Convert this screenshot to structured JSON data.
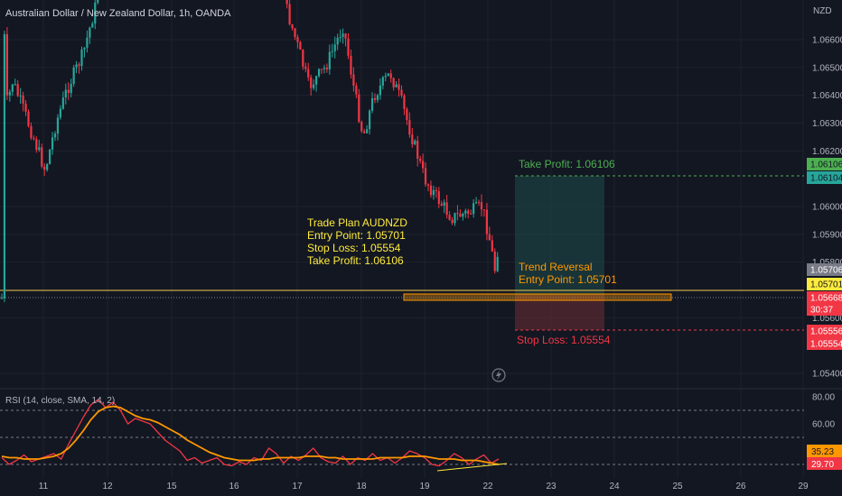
{
  "header": {
    "symbol_title": "Australian Dollar / New Zealand Dollar, 1h, OANDA",
    "currency": "NZD"
  },
  "colors": {
    "background": "#131722",
    "up": "#26a69a",
    "down": "#f23645",
    "grid": "#1e222d",
    "rsi_line": "#f23645",
    "rsi_sma": "#ff9800",
    "plan_text": "#ffeb3b",
    "entry_line": "#f2c94c",
    "take_profit": "#4caf50",
    "stop_loss": "#f23645",
    "orange_text": "#ff9800"
  },
  "plan": {
    "title": "Trade Plan AUDNZD",
    "entry": "Entry Point: 1.05701",
    "stop": "Stop Loss: 1.05554",
    "take": "Take Profit: 1.06106"
  },
  "position": {
    "take_profit_label": "Take Profit: 1.06106",
    "reversal_title": "Trend Reversal",
    "reversal_entry": "Entry Point: 1.05701",
    "stop_loss_label": "Stop Loss: 1.05554"
  },
  "rsi": {
    "legend": "RSI (14, close, SMA, 14, 2)",
    "value_tag": "35.23",
    "sma_tag": "29.70"
  },
  "price_tags": [
    {
      "text": "1.06106",
      "value": 1.06106,
      "bg": "#4caf50",
      "fg": "#131722"
    },
    {
      "text": "1.06104",
      "value": 1.06104,
      "bg": "#26a69a",
      "fg": "#131722"
    },
    {
      "text": "1.05706",
      "value": 1.05706,
      "bg": "#787b86",
      "fg": "#ffffff"
    },
    {
      "text": "1.05701",
      "value": 1.05701,
      "bg": "#ffeb3b",
      "fg": "#131722"
    },
    {
      "text": "1.05668",
      "value": 1.05668,
      "bg": "#f23645",
      "fg": "#ffffff"
    },
    {
      "text": "30:37",
      "value": 1.0565,
      "bg": "#f23645",
      "fg": "#ffffff"
    },
    {
      "text": "1.05556",
      "value": 1.05556,
      "bg": "#f23645",
      "fg": "#ffffff"
    },
    {
      "text": "1.05554",
      "value": 1.05554,
      "bg": "#f23645",
      "fg": "#ffffff"
    }
  ],
  "chart_data": [
    {
      "type": "candlestick",
      "title": "Australian Dollar / New Zealand Dollar, 1h, OANDA",
      "ylabel": "NZD",
      "ylim": [
        1.0532,
        1.0678
      ],
      "y_ticks": [
        1.066,
        1.065,
        1.064,
        1.063,
        1.062,
        1.06,
        1.059,
        1.058,
        1.056,
        1.054
      ],
      "x_ticks": [
        "11",
        "12",
        "15",
        "16",
        "17",
        "18",
        "19",
        "22",
        "23",
        "24",
        "25",
        "26",
        "29"
      ],
      "close_path": [
        {
          "t": "10",
          "close": 1.0668
        },
        {
          "t": "10",
          "close": 1.0637
        },
        {
          "t": "10",
          "close": 1.0645
        },
        {
          "t": "11",
          "close": 1.0633
        },
        {
          "t": "11",
          "close": 1.0613
        },
        {
          "t": "11",
          "close": 1.063
        },
        {
          "t": "11",
          "close": 1.0642
        },
        {
          "t": "11",
          "close": 1.0655
        },
        {
          "t": "12",
          "close": 1.0675
        },
        {
          "t": "12",
          "close": 1.0685
        },
        {
          "t": "12",
          "close": 1.0695
        },
        {
          "t": "12",
          "close": 1.0698
        },
        {
          "t": "15",
          "close": 1.0697
        },
        {
          "t": "15",
          "close": 1.0693
        },
        {
          "t": "16",
          "close": 1.069
        },
        {
          "t": "16",
          "close": 1.0685
        },
        {
          "t": "17",
          "close": 1.067
        },
        {
          "t": "17",
          "close": 1.0655
        },
        {
          "t": "17",
          "close": 1.0643
        },
        {
          "t": "17",
          "close": 1.065
        },
        {
          "t": "17",
          "close": 1.0665
        },
        {
          "t": "18",
          "close": 1.0642
        },
        {
          "t": "18",
          "close": 1.0625
        },
        {
          "t": "18",
          "close": 1.064
        },
        {
          "t": "18",
          "close": 1.0648
        },
        {
          "t": "18",
          "close": 1.0638
        },
        {
          "t": "19",
          "close": 1.0625
        },
        {
          "t": "19",
          "close": 1.061
        },
        {
          "t": "19",
          "close": 1.0603
        },
        {
          "t": "19",
          "close": 1.0596
        },
        {
          "t": "19",
          "close": 1.0598
        },
        {
          "t": "19",
          "close": 1.06
        },
        {
          "t": "22",
          "close": 1.0588
        },
        {
          "t": "22",
          "close": 1.0577
        },
        {
          "t": "22",
          "close": 1.0585
        },
        {
          "t": "22",
          "close": 1.0567
        }
      ],
      "annotations": [
        "Trade Plan AUDNZD",
        "Entry Point: 1.05701",
        "Stop Loss: 1.05554",
        "Take Profit: 1.06106",
        "Take Profit: 1.06106",
        "Trend Reversal",
        "Entry Point: 1.05701",
        "Stop Loss: 1.05554"
      ]
    },
    {
      "type": "line",
      "title": "RSI (14, close, SMA, 14, 2)",
      "ylim": [
        25,
        90
      ],
      "y_ticks": [
        80.0,
        60.0
      ],
      "y_guides": [
        70,
        50,
        30
      ],
      "series": [
        {
          "name": "RSI",
          "values": [
            35,
            30,
            33,
            37,
            32,
            34,
            36,
            38,
            34,
            45,
            55,
            65,
            74,
            78,
            72,
            76,
            70,
            60,
            64,
            62,
            60,
            54,
            48,
            44,
            40,
            33,
            35,
            31,
            33,
            35,
            30,
            29,
            32,
            30,
            35,
            33,
            42,
            38,
            31,
            36,
            33,
            37,
            42,
            35,
            32,
            31,
            36,
            30,
            35,
            33,
            38,
            33,
            35,
            31,
            35,
            40,
            38,
            35,
            30,
            29,
            33,
            38,
            35,
            30,
            34,
            37,
            31,
            34
          ]
        },
        {
          "name": "SMA",
          "values": [
            36,
            35,
            35,
            34,
            34,
            34,
            35,
            36,
            38,
            42,
            48,
            55,
            63,
            69,
            72,
            73,
            72,
            69,
            66,
            64,
            63,
            61,
            58,
            55,
            52,
            48,
            45,
            42,
            39,
            37,
            35,
            34,
            33,
            33,
            33,
            34,
            34,
            35,
            35,
            35,
            35,
            36,
            36,
            36,
            35,
            35,
            34,
            34,
            34,
            34,
            34,
            35,
            35,
            35,
            35,
            36,
            36,
            36,
            35,
            34,
            34,
            34,
            33,
            33,
            33,
            32,
            31,
            30
          ]
        }
      ]
    }
  ]
}
